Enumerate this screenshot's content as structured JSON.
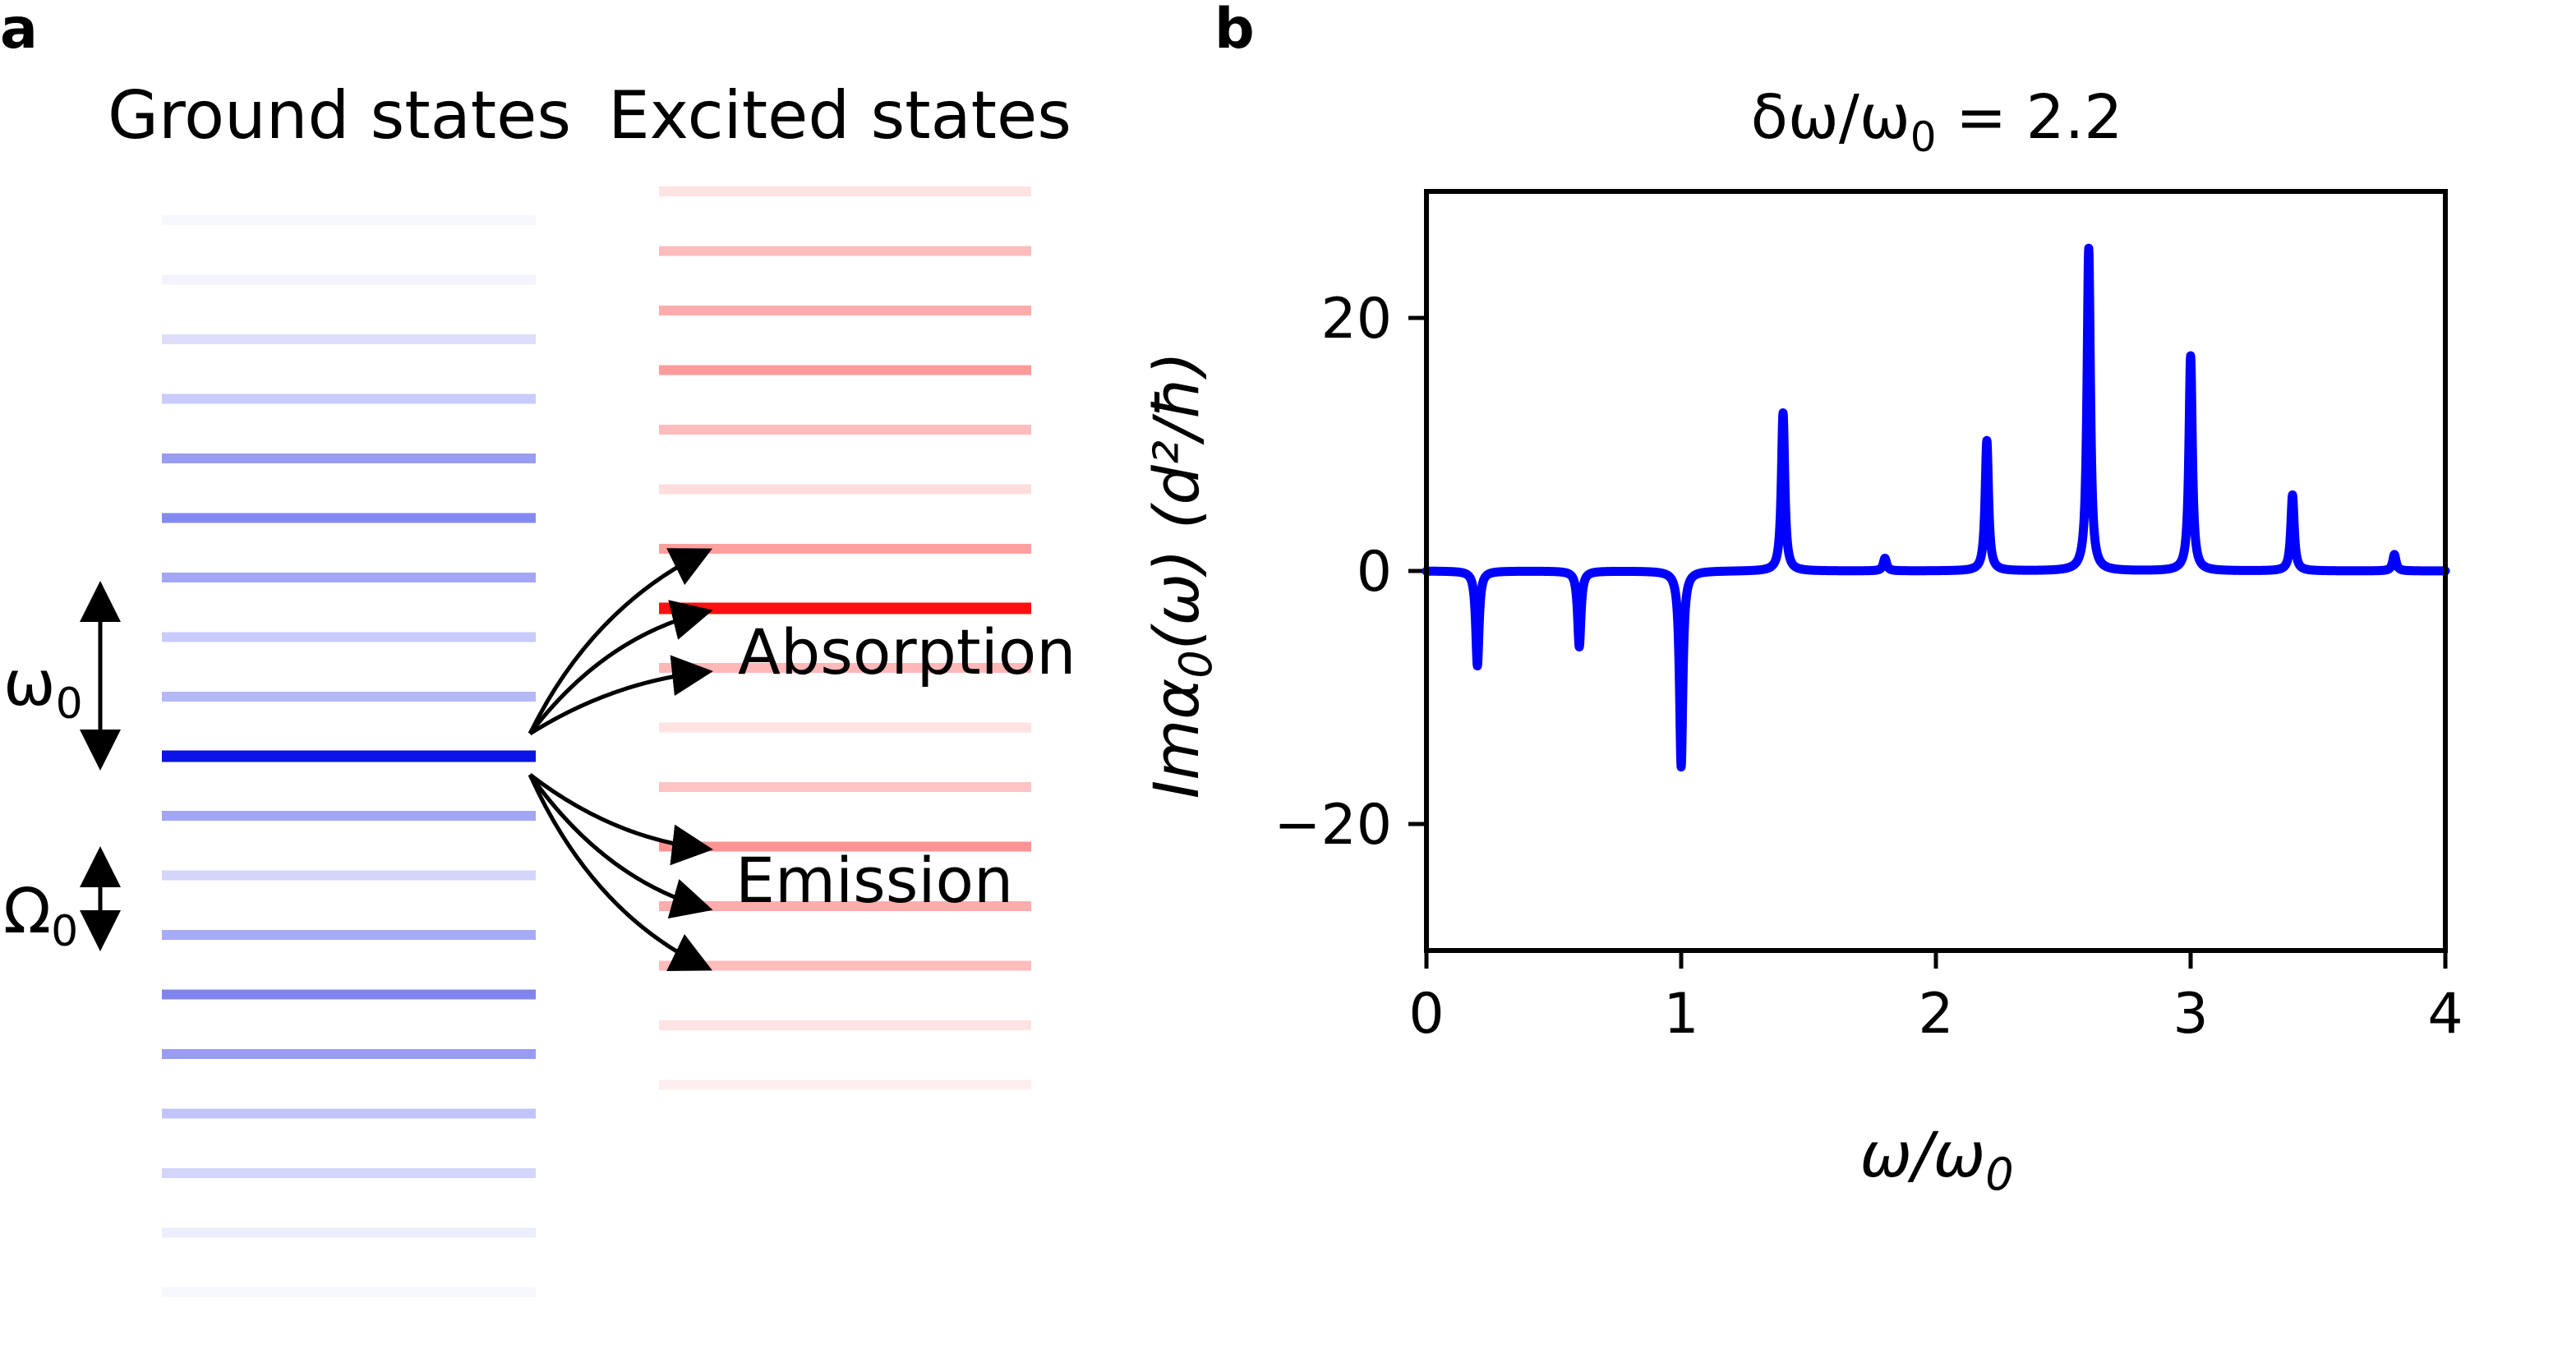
{
  "panels": {
    "a": "a",
    "b": "b"
  },
  "diagram": {
    "ground_title": "Ground states",
    "excited_title": "Excited states",
    "omega_label": "ω",
    "omega_sub": "0",
    "Omega_label": "Ω",
    "Omega_sub": "0",
    "absorption_label": "Absorption",
    "emission_label": "Emission",
    "ground_color": "#0a14e6",
    "excited_color": "#ff1010",
    "ground_levels": {
      "count": 19,
      "highlight_index": 9,
      "opacities": [
        0.03,
        0.05,
        0.14,
        0.22,
        0.42,
        0.5,
        0.38,
        0.22,
        0.3,
        1,
        0.38,
        0.18,
        0.36,
        0.52,
        0.42,
        0.25,
        0.18,
        0.08,
        0.03
      ]
    },
    "excited_levels": {
      "count": 16,
      "highlight_index": 7,
      "opacities": [
        0.12,
        0.28,
        0.35,
        0.42,
        0.28,
        0.14,
        0.4,
        1,
        0.3,
        0.12,
        0.25,
        0.45,
        0.35,
        0.28,
        0.12,
        0.07
      ]
    }
  },
  "chart_data": {
    "type": "line",
    "title_prefix": "δω/ω",
    "title_sub": "0",
    "title_suffix": " = 2.2",
    "xlabel_main": "ω/ω",
    "xlabel_sub": "0",
    "ylabel_pre": "Imα",
    "ylabel_sub": "0",
    "ylabel_post": "(ω) (d²/ħ)",
    "xlim": [
      0,
      4
    ],
    "ylim": [
      -30,
      30
    ],
    "xticks": [
      0,
      1,
      2,
      3,
      4
    ],
    "xtick_labels": [
      "0",
      "1",
      "2",
      "3",
      "4"
    ],
    "yticks": [
      -20,
      0,
      20
    ],
    "ytick_labels": [
      "−20",
      "0",
      "20"
    ],
    "line_color": "#0000ff",
    "linewidth_hint": "thick",
    "peaks": [
      {
        "x": 0.2,
        "y": -7.5
      },
      {
        "x": 0.6,
        "y": -6
      },
      {
        "x": 1.0,
        "y": -15.5
      },
      {
        "x": 1.4,
        "y": 12.5
      },
      {
        "x": 1.8,
        "y": 1
      },
      {
        "x": 2.2,
        "y": 10.3
      },
      {
        "x": 2.6,
        "y": 25.5
      },
      {
        "x": 3.0,
        "y": 17
      },
      {
        "x": 3.4,
        "y": 6
      },
      {
        "x": 3.8,
        "y": 1.3
      }
    ]
  }
}
